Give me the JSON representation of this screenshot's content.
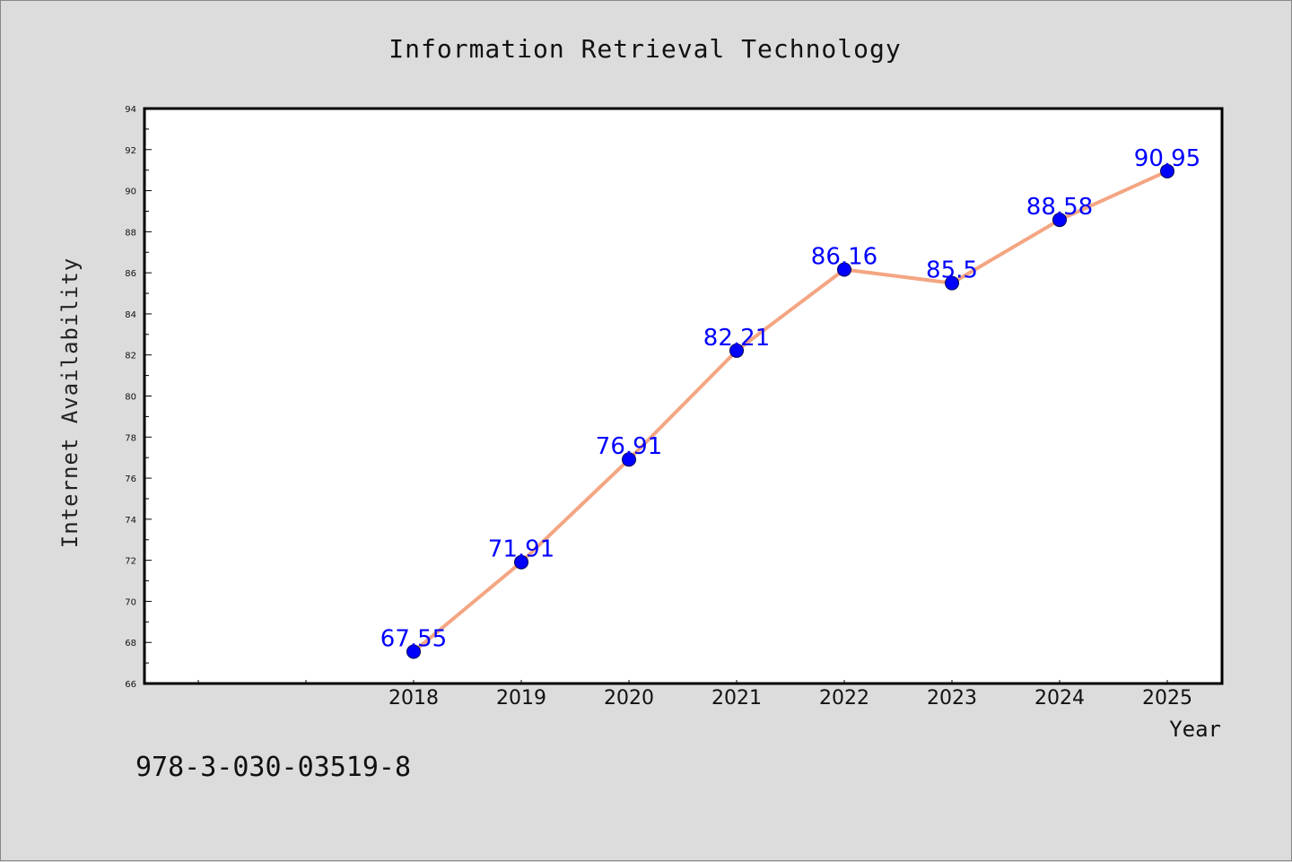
{
  "chart_data": {
    "type": "line",
    "title": "Information Retrieval Technology",
    "xlabel": "Year",
    "ylabel": "Internet Availability",
    "categories": [
      "2018",
      "2019",
      "2020",
      "2021",
      "2022",
      "2023",
      "2024",
      "2025"
    ],
    "series": [
      {
        "values": [
          67.55,
          71.91,
          76.91,
          82.21,
          86.16,
          85.5,
          88.58,
          90.95
        ],
        "labels": [
          "67.55",
          "71.91",
          "76.91",
          "82.21",
          "86.16",
          "85.5",
          "88.58",
          "90.95"
        ],
        "line_color": "#f4a582",
        "marker_color": "#0000ff"
      }
    ],
    "ylim": [
      66,
      94
    ],
    "yticks": [
      66,
      68,
      70,
      72,
      74,
      76,
      78,
      80,
      82,
      84,
      86,
      88,
      90,
      92,
      94
    ],
    "x_leading_empty_slots": 2,
    "grid": false,
    "legend": "none",
    "footer_text": "978-3-030-03519-8",
    "background_color": "#dcdcdc",
    "plot_background_color": "#ffffff"
  }
}
